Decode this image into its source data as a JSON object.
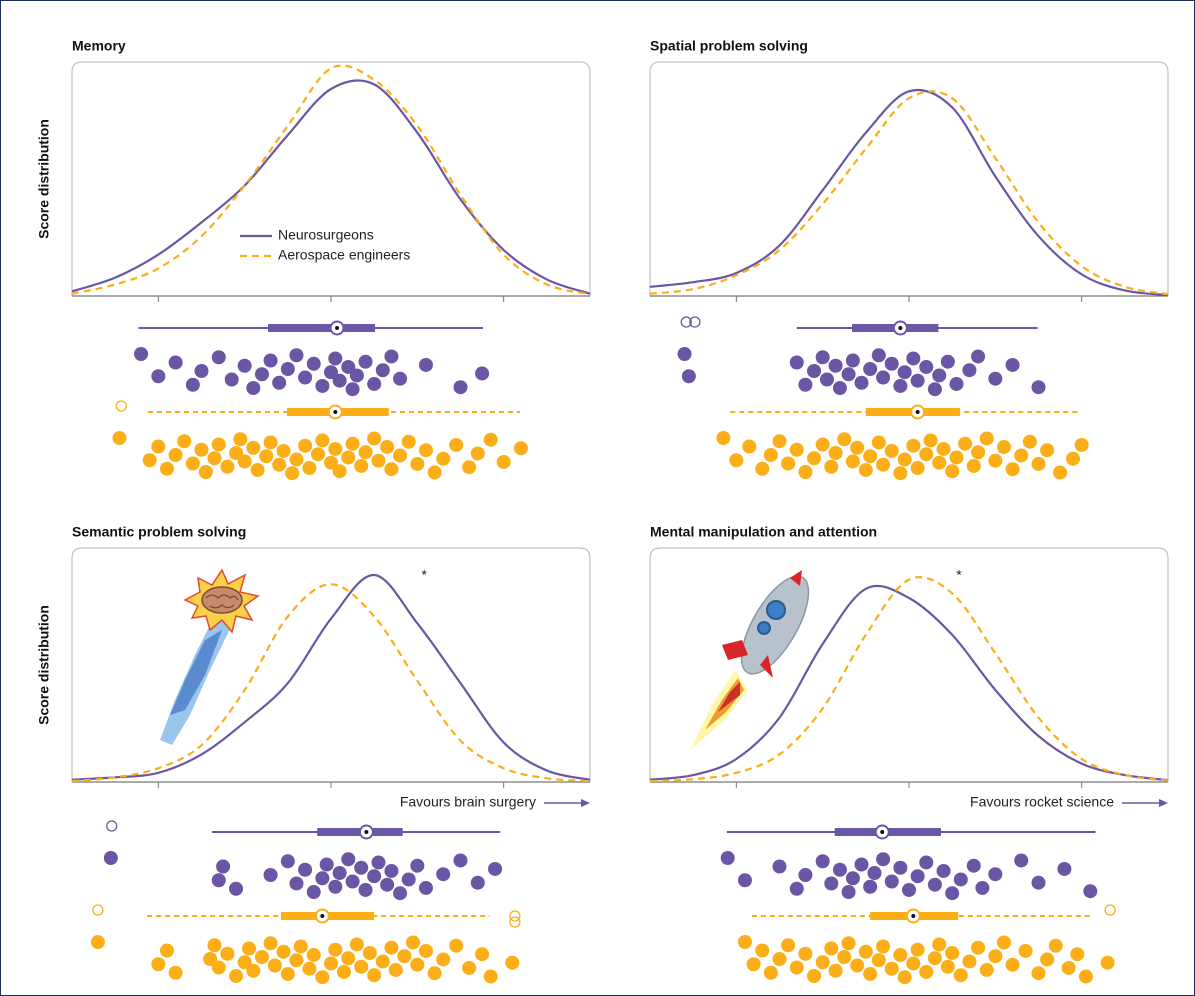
{
  "chart_data": [
    {
      "type": "density",
      "title": "Memory",
      "ylabel": "Score distribution",
      "x": [
        -3,
        -2.5,
        -2,
        -1.5,
        -1,
        -0.5,
        0,
        0.5,
        1,
        1.5,
        2,
        2.5,
        3
      ],
      "xlim": [
        -3,
        3
      ],
      "ylim": [
        0,
        0.5
      ],
      "xticks": [
        -2,
        0,
        2
      ],
      "series": [
        {
          "name": "Neurosurgeons",
          "color": "#6a56a5",
          "dashed": false,
          "values": [
            0.01,
            0.04,
            0.09,
            0.16,
            0.24,
            0.35,
            0.45,
            0.46,
            0.355,
            0.21,
            0.1,
            0.036,
            0.005
          ],
          "box": [
            -2.23,
            -0.73,
            0.07,
            0.51,
            1.76
          ],
          "outliers": [],
          "points": [
            -2.2,
            -2.0,
            -1.8,
            -1.6,
            -1.5,
            -1.3,
            -1.15,
            -1.0,
            -0.9,
            -0.8,
            -0.7,
            -0.6,
            -0.5,
            -0.4,
            -0.3,
            -0.2,
            -0.1,
            0.0,
            0.05,
            0.1,
            0.2,
            0.25,
            0.3,
            0.4,
            0.5,
            0.6,
            0.7,
            0.8,
            1.1,
            1.5,
            1.75
          ]
        },
        {
          "name": "Aerospace engineers",
          "color": "#fbae17",
          "dashed": true,
          "values": [
            0.005,
            0.025,
            0.06,
            0.13,
            0.24,
            0.37,
            0.495,
            0.47,
            0.37,
            0.22,
            0.09,
            0.025,
            0.004
          ],
          "box": [
            -2.12,
            -0.51,
            0.05,
            0.67,
            2.19
          ],
          "outliers": [
            -2.43
          ],
          "points": [
            -2.45,
            -2.1,
            -2.0,
            -1.9,
            -1.8,
            -1.7,
            -1.6,
            -1.5,
            -1.45,
            -1.35,
            -1.3,
            -1.2,
            -1.1,
            -1.05,
            -1.0,
            -0.9,
            -0.85,
            -0.75,
            -0.7,
            -0.6,
            -0.55,
            -0.45,
            -0.4,
            -0.3,
            -0.25,
            -0.15,
            -0.1,
            0.0,
            0.05,
            0.1,
            0.2,
            0.25,
            0.35,
            0.4,
            0.5,
            0.55,
            0.65,
            0.7,
            0.8,
            0.9,
            1.0,
            1.1,
            1.2,
            1.3,
            1.45,
            1.6,
            1.7,
            1.85,
            2.0,
            2.2
          ]
        }
      ]
    },
    {
      "type": "density",
      "title": "Spatial problem solving",
      "x": [
        -3,
        -2.5,
        -2,
        -1.5,
        -1,
        -0.5,
        0,
        0.5,
        1,
        1.5,
        2,
        2.5,
        3
      ],
      "xlim": [
        -3,
        3
      ],
      "ylim": [
        0,
        0.5
      ],
      "xticks": [
        -2,
        0,
        2
      ],
      "series": [
        {
          "color": "#6a56a5",
          "dashed": false,
          "values": [
            0.02,
            0.03,
            0.05,
            0.11,
            0.23,
            0.355,
            0.445,
            0.41,
            0.26,
            0.13,
            0.047,
            0.012,
            0.002
          ],
          "box": [
            -1.3,
            -0.66,
            -0.1,
            0.34,
            1.49
          ],
          "outliers": [
            -2.58,
            -2.48
          ],
          "points": [
            -2.6,
            -2.55,
            -1.3,
            -1.2,
            -1.1,
            -1.0,
            -0.95,
            -0.85,
            -0.8,
            -0.7,
            -0.65,
            -0.55,
            -0.45,
            -0.35,
            -0.3,
            -0.2,
            -0.1,
            -0.05,
            0.05,
            0.1,
            0.2,
            0.3,
            0.35,
            0.45,
            0.55,
            0.7,
            0.8,
            1.0,
            1.2,
            1.5
          ]
        },
        {
          "color": "#fbae17",
          "dashed": true,
          "values": [
            0.005,
            0.015,
            0.045,
            0.1,
            0.2,
            0.32,
            0.43,
            0.43,
            0.3,
            0.16,
            0.065,
            0.02,
            0.004
          ],
          "box": [
            -2.07,
            -0.5,
            0.1,
            0.59,
            1.98
          ],
          "outliers": [],
          "points": [
            -2.15,
            -2.0,
            -1.85,
            -1.7,
            -1.6,
            -1.5,
            -1.4,
            -1.3,
            -1.2,
            -1.1,
            -1.0,
            -0.9,
            -0.85,
            -0.75,
            -0.65,
            -0.6,
            -0.5,
            -0.45,
            -0.35,
            -0.3,
            -0.2,
            -0.1,
            -0.05,
            0.05,
            0.1,
            0.2,
            0.25,
            0.35,
            0.4,
            0.5,
            0.55,
            0.65,
            0.75,
            0.8,
            0.9,
            1.0,
            1.1,
            1.2,
            1.3,
            1.4,
            1.5,
            1.6,
            1.75,
            1.9,
            2.0
          ]
        }
      ]
    },
    {
      "type": "density",
      "title": "Semantic problem solving",
      "ylabel": "Score distribution",
      "annotation": "Favours brain surgery",
      "significance": {
        "text": "*",
        "series": 0
      },
      "x": [
        -3,
        -2.5,
        -2,
        -1.5,
        -1,
        -0.5,
        0,
        0.5,
        1,
        1.5,
        2,
        2.5,
        3
      ],
      "xlim": [
        -3,
        3
      ],
      "ylim": [
        0,
        0.5
      ],
      "xticks": [
        -2,
        0,
        2
      ],
      "series": [
        {
          "color": "#6a56a5",
          "dashed": false,
          "values": [
            0.005,
            0.01,
            0.02,
            0.06,
            0.13,
            0.215,
            0.355,
            0.45,
            0.345,
            0.215,
            0.086,
            0.025,
            0.005
          ],
          "box": [
            -1.38,
            -0.16,
            0.41,
            0.83,
            1.96
          ],
          "outliers": [
            -2.54
          ],
          "points": [
            -2.55,
            -1.3,
            -1.25,
            -1.1,
            -0.7,
            -0.5,
            -0.4,
            -0.3,
            -0.2,
            -0.1,
            -0.05,
            0.05,
            0.1,
            0.2,
            0.25,
            0.35,
            0.4,
            0.5,
            0.55,
            0.65,
            0.7,
            0.8,
            0.9,
            1.0,
            1.1,
            1.3,
            1.5,
            1.7,
            1.9
          ]
        },
        {
          "color": "#fbae17",
          "dashed": true,
          "values": [
            0.002,
            0.01,
            0.03,
            0.08,
            0.2,
            0.36,
            0.43,
            0.36,
            0.22,
            0.09,
            0.03,
            0.008,
            0.002
          ],
          "box": [
            -2.13,
            -0.58,
            -0.1,
            0.5,
            1.84
          ],
          "outliers": [
            -2.7,
            2.13,
            2.13
          ],
          "points": [
            -2.7,
            -2.0,
            -1.9,
            -1.8,
            -1.4,
            -1.35,
            -1.3,
            -1.2,
            -1.1,
            -1.0,
            -0.95,
            -0.9,
            -0.8,
            -0.7,
            -0.65,
            -0.55,
            -0.5,
            -0.4,
            -0.35,
            -0.25,
            -0.2,
            -0.1,
            0.0,
            0.05,
            0.15,
            0.2,
            0.3,
            0.35,
            0.45,
            0.5,
            0.6,
            0.7,
            0.75,
            0.85,
            0.95,
            1.0,
            1.1,
            1.2,
            1.3,
            1.45,
            1.6,
            1.75,
            1.85,
            2.1
          ]
        }
      ]
    },
    {
      "type": "density",
      "title": "Mental manipulation and attention",
      "annotation": "Favours rocket science",
      "significance": {
        "text": "*",
        "series": 1
      },
      "x": [
        -3,
        -2.5,
        -2,
        -1.5,
        -1,
        -0.5,
        0,
        0.5,
        1,
        1.5,
        2,
        2.5,
        3
      ],
      "xlim": [
        -3,
        3
      ],
      "ylim": [
        0,
        0.5
      ],
      "xticks": [
        -2,
        0,
        2
      ],
      "series": [
        {
          "color": "#6a56a5",
          "dashed": false,
          "values": [
            0.005,
            0.015,
            0.05,
            0.14,
            0.3,
            0.42,
            0.4,
            0.32,
            0.2,
            0.1,
            0.04,
            0.015,
            0.004
          ],
          "box": [
            -2.11,
            -0.86,
            -0.31,
            0.37,
            2.16
          ],
          "outliers": [],
          "points": [
            -2.1,
            -1.9,
            -1.5,
            -1.3,
            -1.2,
            -1.0,
            -0.9,
            -0.8,
            -0.7,
            -0.65,
            -0.55,
            -0.45,
            -0.4,
            -0.3,
            -0.2,
            -0.1,
            0.0,
            0.1,
            0.2,
            0.3,
            0.4,
            0.5,
            0.6,
            0.75,
            0.85,
            1.0,
            1.3,
            1.5,
            1.8,
            2.1
          ]
        },
        {
          "color": "#fbae17",
          "dashed": true,
          "values": [
            0.002,
            0.006,
            0.02,
            0.06,
            0.16,
            0.32,
            0.44,
            0.41,
            0.28,
            0.14,
            0.05,
            0.015,
            0.003
          ],
          "box": [
            -1.82,
            -0.45,
            0.05,
            0.57,
            2.12
          ],
          "outliers": [
            2.33
          ],
          "points": [
            -1.9,
            -1.8,
            -1.7,
            -1.6,
            -1.5,
            -1.4,
            -1.3,
            -1.2,
            -1.1,
            -1.0,
            -0.9,
            -0.85,
            -0.75,
            -0.7,
            -0.6,
            -0.5,
            -0.45,
            -0.35,
            -0.3,
            -0.2,
            -0.1,
            -0.05,
            0.05,
            0.1,
            0.2,
            0.3,
            0.35,
            0.45,
            0.5,
            0.6,
            0.7,
            0.8,
            0.9,
            1.0,
            1.1,
            1.2,
            1.35,
            1.5,
            1.6,
            1.7,
            1.85,
            1.95,
            2.05,
            2.3
          ]
        }
      ]
    }
  ]
}
